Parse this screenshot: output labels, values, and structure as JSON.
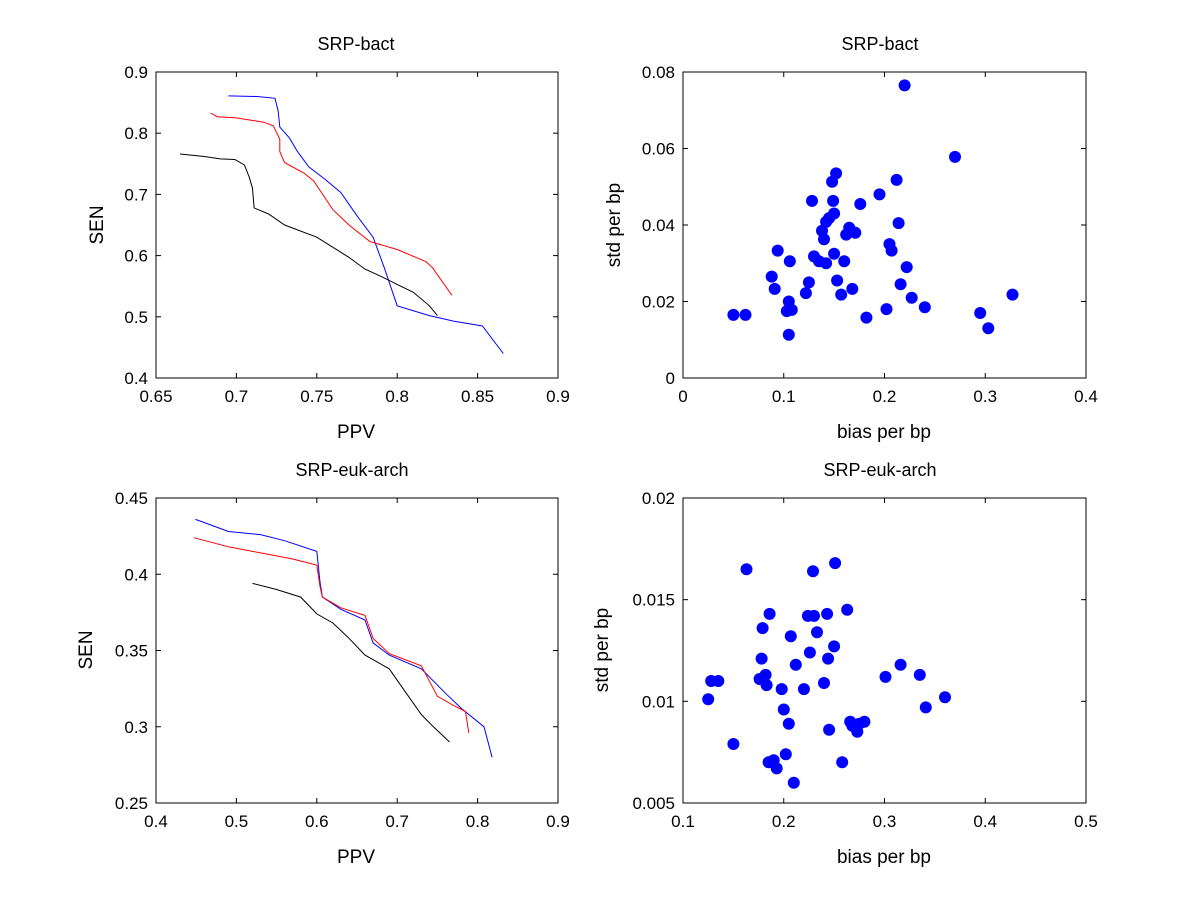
{
  "chart_data": [
    {
      "type": "line",
      "title": "SRP-bact",
      "xlabel": "PPV",
      "ylabel": "SEN",
      "xlim": [
        0.65,
        0.9
      ],
      "ylim": [
        0.4,
        0.9
      ],
      "xticks": [
        "0.65",
        "0.7",
        "0.75",
        "0.8",
        "0.85",
        "0.9"
      ],
      "yticks": [
        "0.4",
        "0.5",
        "0.6",
        "0.7",
        "0.8",
        "0.9"
      ],
      "grid": false,
      "series": [
        {
          "color": "#0000ff",
          "points": [
            [
              0.695,
              0.861
            ],
            [
              0.713,
              0.86
            ],
            [
              0.724,
              0.857
            ],
            [
              0.726,
              0.836
            ],
            [
              0.727,
              0.81
            ],
            [
              0.733,
              0.792
            ],
            [
              0.738,
              0.77
            ],
            [
              0.745,
              0.745
            ],
            [
              0.755,
              0.725
            ],
            [
              0.765,
              0.703
            ],
            [
              0.775,
              0.665
            ],
            [
              0.785,
              0.63
            ],
            [
              0.792,
              0.58
            ],
            [
              0.8,
              0.518
            ],
            [
              0.82,
              0.502
            ],
            [
              0.835,
              0.493
            ],
            [
              0.853,
              0.485
            ],
            [
              0.866,
              0.44
            ]
          ]
        },
        {
          "color": "#ff0000",
          "points": [
            [
              0.684,
              0.833
            ],
            [
              0.688,
              0.827
            ],
            [
              0.7,
              0.825
            ],
            [
              0.717,
              0.818
            ],
            [
              0.723,
              0.812
            ],
            [
              0.727,
              0.79
            ],
            [
              0.727,
              0.77
            ],
            [
              0.73,
              0.752
            ],
            [
              0.742,
              0.735
            ],
            [
              0.748,
              0.722
            ],
            [
              0.755,
              0.695
            ],
            [
              0.76,
              0.675
            ],
            [
              0.77,
              0.65
            ],
            [
              0.783,
              0.623
            ],
            [
              0.8,
              0.61
            ],
            [
              0.818,
              0.59
            ],
            [
              0.822,
              0.58
            ],
            [
              0.834,
              0.535
            ]
          ]
        },
        {
          "color": "#000000",
          "points": [
            [
              0.665,
              0.766
            ],
            [
              0.68,
              0.762
            ],
            [
              0.69,
              0.758
            ],
            [
              0.699,
              0.757
            ],
            [
              0.705,
              0.748
            ],
            [
              0.708,
              0.728
            ],
            [
              0.71,
              0.71
            ],
            [
              0.711,
              0.678
            ],
            [
              0.72,
              0.668
            ],
            [
              0.73,
              0.65
            ],
            [
              0.75,
              0.63
            ],
            [
              0.77,
              0.597
            ],
            [
              0.78,
              0.578
            ],
            [
              0.79,
              0.566
            ],
            [
              0.8,
              0.553
            ],
            [
              0.81,
              0.54
            ],
            [
              0.82,
              0.518
            ],
            [
              0.825,
              0.502
            ]
          ]
        }
      ]
    },
    {
      "type": "scatter",
      "title": "SRP-bact",
      "xlabel": "bias per bp",
      "ylabel": "std per bp",
      "xlim": [
        0,
        0.4
      ],
      "ylim": [
        0,
        0.08
      ],
      "xticks": [
        "0",
        "0.1",
        "0.2",
        "0.3",
        "0.4"
      ],
      "yticks": [
        "0",
        "0.02",
        "0.04",
        "0.06",
        "0.08"
      ],
      "grid": false,
      "color": "#0000ff",
      "points": [
        [
          0.05,
          0.0165
        ],
        [
          0.062,
          0.0165
        ],
        [
          0.088,
          0.0265
        ],
        [
          0.091,
          0.0233
        ],
        [
          0.094,
          0.0333
        ],
        [
          0.103,
          0.0175
        ],
        [
          0.105,
          0.02
        ],
        [
          0.105,
          0.0113
        ],
        [
          0.106,
          0.0305
        ],
        [
          0.108,
          0.0178
        ],
        [
          0.122,
          0.0222
        ],
        [
          0.125,
          0.025
        ],
        [
          0.128,
          0.0463
        ],
        [
          0.13,
          0.0318
        ],
        [
          0.135,
          0.0305
        ],
        [
          0.138,
          0.0385
        ],
        [
          0.14,
          0.0363
        ],
        [
          0.142,
          0.0408
        ],
        [
          0.142,
          0.03
        ],
        [
          0.145,
          0.0418
        ],
        [
          0.148,
          0.0513
        ],
        [
          0.149,
          0.0463
        ],
        [
          0.15,
          0.0325
        ],
        [
          0.15,
          0.043
        ],
        [
          0.152,
          0.0535
        ],
        [
          0.153,
          0.0255
        ],
        [
          0.157,
          0.0218
        ],
        [
          0.16,
          0.0305
        ],
        [
          0.162,
          0.0375
        ],
        [
          0.165,
          0.0393
        ],
        [
          0.168,
          0.0233
        ],
        [
          0.171,
          0.038
        ],
        [
          0.176,
          0.0455
        ],
        [
          0.182,
          0.0158
        ],
        [
          0.195,
          0.048
        ],
        [
          0.202,
          0.018
        ],
        [
          0.205,
          0.035
        ],
        [
          0.207,
          0.0333
        ],
        [
          0.212,
          0.0518
        ],
        [
          0.214,
          0.0405
        ],
        [
          0.216,
          0.0245
        ],
        [
          0.22,
          0.0765
        ],
        [
          0.222,
          0.029
        ],
        [
          0.227,
          0.021
        ],
        [
          0.24,
          0.0185
        ],
        [
          0.27,
          0.0578
        ],
        [
          0.295,
          0.017
        ],
        [
          0.303,
          0.013
        ],
        [
          0.327,
          0.0218
        ]
      ]
    },
    {
      "type": "line",
      "title": "SRP-euk-arch",
      "xlabel": "PPV",
      "ylabel": "SEN",
      "xlim": [
        0.4,
        0.9
      ],
      "ylim": [
        0.25,
        0.45
      ],
      "xticks": [
        "0.4",
        "0.5",
        "0.6",
        "0.7",
        "0.8",
        "0.9"
      ],
      "yticks": [
        "0.25",
        "0.3",
        "0.35",
        "0.4",
        "0.45"
      ],
      "grid": false,
      "series": [
        {
          "color": "#0000ff",
          "points": [
            [
              0.449,
              0.436
            ],
            [
              0.47,
              0.432
            ],
            [
              0.49,
              0.428
            ],
            [
              0.53,
              0.426
            ],
            [
              0.56,
              0.422
            ],
            [
              0.6,
              0.415
            ],
            [
              0.604,
              0.395
            ],
            [
              0.607,
              0.385
            ],
            [
              0.63,
              0.377
            ],
            [
              0.66,
              0.37
            ],
            [
              0.67,
              0.355
            ],
            [
              0.69,
              0.347
            ],
            [
              0.73,
              0.338
            ],
            [
              0.76,
              0.322
            ],
            [
              0.78,
              0.312
            ],
            [
              0.808,
              0.3
            ],
            [
              0.818,
              0.28
            ]
          ]
        },
        {
          "color": "#ff0000",
          "points": [
            [
              0.447,
              0.424
            ],
            [
              0.49,
              0.418
            ],
            [
              0.53,
              0.414
            ],
            [
              0.57,
              0.41
            ],
            [
              0.6,
              0.406
            ],
            [
              0.604,
              0.392
            ],
            [
              0.607,
              0.385
            ],
            [
              0.63,
              0.378
            ],
            [
              0.66,
              0.373
            ],
            [
              0.67,
              0.358
            ],
            [
              0.69,
              0.348
            ],
            [
              0.73,
              0.34
            ],
            [
              0.75,
              0.32
            ],
            [
              0.77,
              0.314
            ],
            [
              0.785,
              0.31
            ],
            [
              0.789,
              0.296
            ]
          ]
        },
        {
          "color": "#000000",
          "points": [
            [
              0.52,
              0.394
            ],
            [
              0.55,
              0.39
            ],
            [
              0.58,
              0.385
            ],
            [
              0.6,
              0.374
            ],
            [
              0.62,
              0.368
            ],
            [
              0.64,
              0.358
            ],
            [
              0.66,
              0.347
            ],
            [
              0.69,
              0.338
            ],
            [
              0.71,
              0.323
            ],
            [
              0.73,
              0.308
            ],
            [
              0.745,
              0.3
            ],
            [
              0.765,
              0.29
            ]
          ]
        }
      ]
    },
    {
      "type": "scatter",
      "title": "SRP-euk-arch",
      "xlabel": "bias per bp",
      "ylabel": "std per bp",
      "xlim": [
        0.1,
        0.5
      ],
      "ylim": [
        0.005,
        0.02
      ],
      "xticks": [
        "0.1",
        "0.2",
        "0.3",
        "0.4",
        "0.5"
      ],
      "yticks": [
        "0.005",
        "0.01",
        "0.015",
        "0.02"
      ],
      "grid": false,
      "color": "#0000ff",
      "points": [
        [
          0.125,
          0.0101
        ],
        [
          0.128,
          0.011
        ],
        [
          0.135,
          0.011
        ],
        [
          0.15,
          0.0079
        ],
        [
          0.163,
          0.0165
        ],
        [
          0.176,
          0.0111
        ],
        [
          0.178,
          0.0121
        ],
        [
          0.179,
          0.0136
        ],
        [
          0.18,
          0.0111
        ],
        [
          0.182,
          0.0113
        ],
        [
          0.183,
          0.0108
        ],
        [
          0.185,
          0.007
        ],
        [
          0.186,
          0.0143
        ],
        [
          0.19,
          0.0071
        ],
        [
          0.193,
          0.0067
        ],
        [
          0.198,
          0.0106
        ],
        [
          0.2,
          0.0096
        ],
        [
          0.202,
          0.0074
        ],
        [
          0.205,
          0.0089
        ],
        [
          0.207,
          0.0132
        ],
        [
          0.21,
          0.006
        ],
        [
          0.212,
          0.0118
        ],
        [
          0.22,
          0.0106
        ],
        [
          0.224,
          0.0142
        ],
        [
          0.226,
          0.0124
        ],
        [
          0.229,
          0.0164
        ],
        [
          0.23,
          0.0142
        ],
        [
          0.233,
          0.0134
        ],
        [
          0.24,
          0.0109
        ],
        [
          0.243,
          0.0143
        ],
        [
          0.244,
          0.0121
        ],
        [
          0.245,
          0.0086
        ],
        [
          0.25,
          0.0127
        ],
        [
          0.251,
          0.0168
        ],
        [
          0.258,
          0.007
        ],
        [
          0.263,
          0.0145
        ],
        [
          0.266,
          0.009
        ],
        [
          0.268,
          0.0088
        ],
        [
          0.273,
          0.0085
        ],
        [
          0.275,
          0.0089
        ],
        [
          0.28,
          0.009
        ],
        [
          0.301,
          0.0112
        ],
        [
          0.316,
          0.0118
        ],
        [
          0.335,
          0.0113
        ],
        [
          0.341,
          0.0097
        ],
        [
          0.36,
          0.0102
        ]
      ]
    }
  ]
}
